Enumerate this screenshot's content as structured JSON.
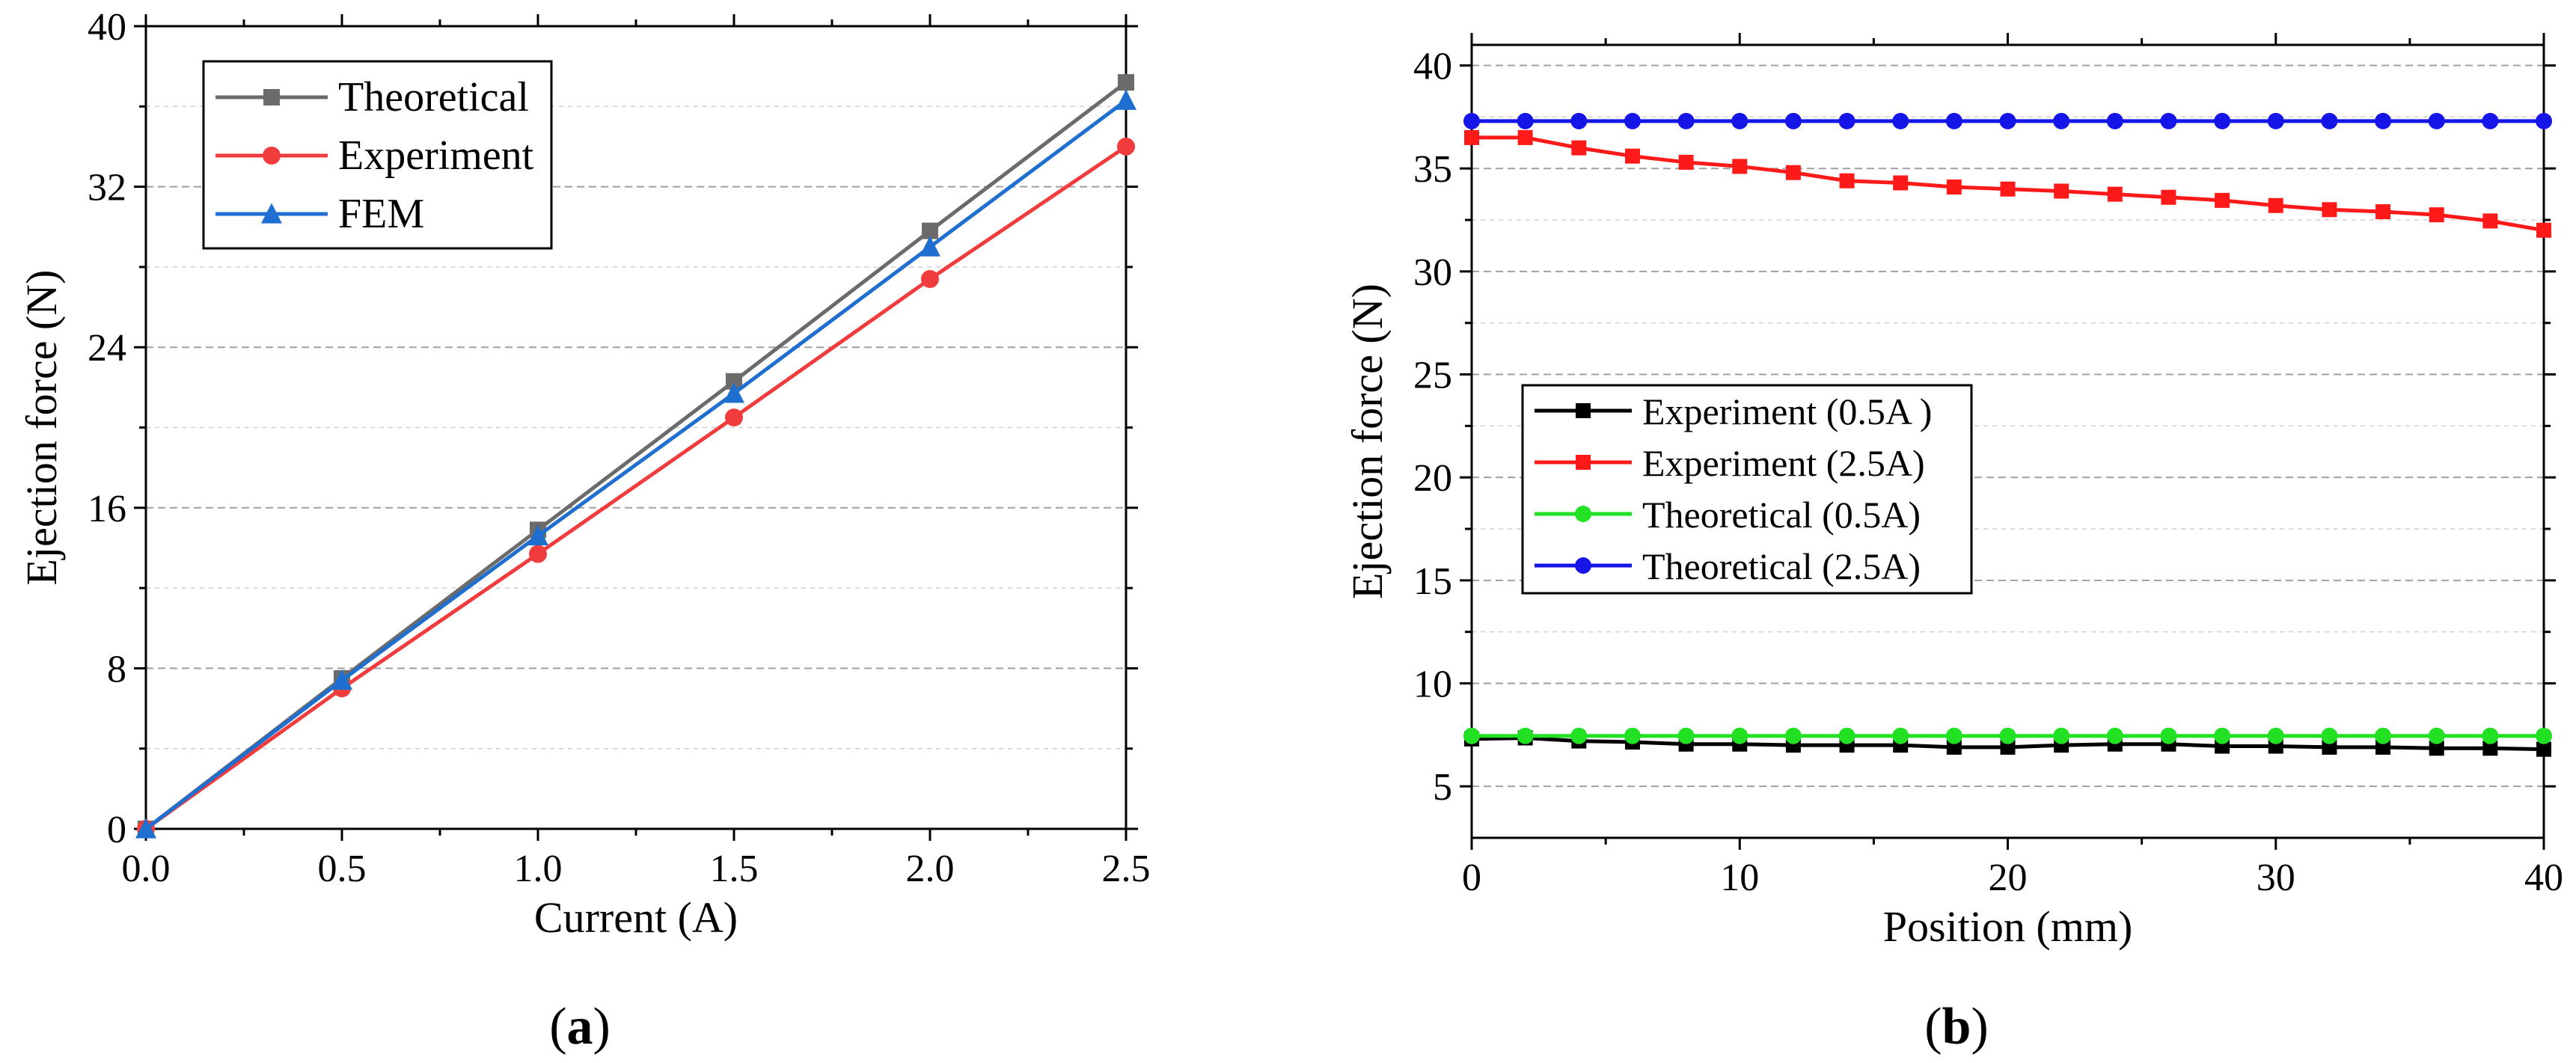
{
  "chart_data": [
    {
      "type": "line",
      "panel": "a",
      "xlabel": "Current (A)",
      "ylabel": "Ejection force (N)",
      "xlim": [
        0,
        2.5
      ],
      "ylim": [
        0,
        40
      ],
      "xticks": [
        0.0,
        0.5,
        1.0,
        1.5,
        2.0,
        2.5
      ],
      "xtick_labels": [
        "0.0",
        "0.5",
        "1.0",
        "1.5",
        "2.0",
        "2.5"
      ],
      "yticks": [
        0,
        8,
        16,
        24,
        32,
        40
      ],
      "ytick_labels": [
        "0",
        "8",
        "16",
        "24",
        "32",
        "40"
      ],
      "grid": true,
      "legend_position": "top-left",
      "x": [
        0,
        0.5,
        1.0,
        1.5,
        2.0,
        2.5
      ],
      "series": [
        {
          "name": "Theoretical",
          "marker": "square",
          "color": "#6b6b6b",
          "values": [
            0,
            7.5,
            14.9,
            22.3,
            29.8,
            37.2
          ]
        },
        {
          "name": "Experiment",
          "marker": "circle",
          "color": "#f03c3c",
          "values": [
            0,
            7.0,
            13.7,
            20.5,
            27.4,
            34.0
          ]
        },
        {
          "name": "FEM",
          "marker": "triangle",
          "color": "#1f6fd0",
          "values": [
            0,
            7.4,
            14.6,
            21.7,
            29.0,
            36.3
          ]
        }
      ]
    },
    {
      "type": "line",
      "panel": "b",
      "xlabel": "Position (mm)",
      "ylabel": "Ejection force (N)",
      "xlim": [
        0,
        40
      ],
      "ylim": [
        2.5,
        41
      ],
      "xticks": [
        0,
        10,
        20,
        30,
        40
      ],
      "xtick_labels": [
        "0",
        "10",
        "20",
        "30",
        "40"
      ],
      "yticks": [
        5,
        10,
        15,
        20,
        25,
        30,
        35,
        40
      ],
      "ytick_labels": [
        "5",
        "10",
        "15",
        "20",
        "25",
        "30",
        "35",
        "40"
      ],
      "grid": true,
      "legend_position": "center-left",
      "x": [
        0,
        2,
        4,
        6,
        8,
        10,
        12,
        14,
        16,
        18,
        20,
        22,
        24,
        26,
        28,
        30,
        32,
        34,
        36,
        38,
        40
      ],
      "series": [
        {
          "name": "Experiment (0.5A )",
          "marker": "square",
          "color": "#000000",
          "values": [
            7.3,
            7.35,
            7.2,
            7.15,
            7.05,
            7.05,
            7.0,
            7.0,
            7.0,
            6.9,
            6.9,
            7.0,
            7.05,
            7.05,
            6.95,
            6.95,
            6.9,
            6.9,
            6.85,
            6.85,
            6.8
          ]
        },
        {
          "name": "Experiment (2.5A)",
          "marker": "square",
          "color": "#ff1a1a",
          "values": [
            36.5,
            36.5,
            36.0,
            35.6,
            35.3,
            35.1,
            34.8,
            34.4,
            34.3,
            34.1,
            34.0,
            33.9,
            33.75,
            33.6,
            33.45,
            33.2,
            33.0,
            32.9,
            32.75,
            32.45,
            32.0
          ]
        },
        {
          "name": "Theoretical (0.5A)",
          "marker": "circle",
          "color": "#22e022",
          "values": [
            7.45,
            7.45,
            7.45,
            7.45,
            7.45,
            7.45,
            7.45,
            7.45,
            7.45,
            7.45,
            7.45,
            7.45,
            7.45,
            7.45,
            7.45,
            7.45,
            7.45,
            7.45,
            7.45,
            7.45,
            7.45
          ]
        },
        {
          "name": "Theoretical (2.5A)",
          "marker": "circle",
          "color": "#1515e8",
          "values": [
            37.3,
            37.3,
            37.3,
            37.3,
            37.3,
            37.3,
            37.3,
            37.3,
            37.3,
            37.3,
            37.3,
            37.3,
            37.3,
            37.3,
            37.3,
            37.3,
            37.3,
            37.3,
            37.3,
            37.3,
            37.3
          ]
        }
      ]
    }
  ],
  "captions": {
    "a": {
      "open": "(",
      "letter": "a",
      "close": ")"
    },
    "b": {
      "open": "(",
      "letter": "b",
      "close": ")"
    }
  }
}
